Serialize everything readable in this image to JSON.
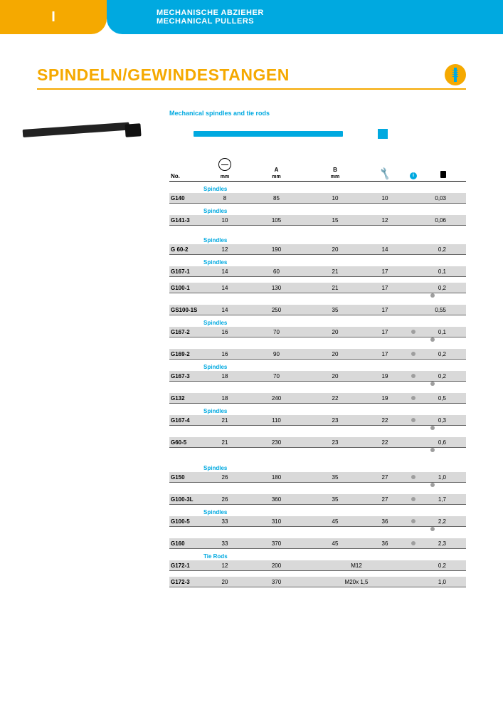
{
  "header": {
    "section_letter": "I",
    "line1": "MECHANISCHE ABZIEHER",
    "line2": "MECHANICAL PULLERS"
  },
  "title": "SPINDELN/GEWINDESTANGEN",
  "subtitle": "Mechanical spindles and tie rods",
  "columns": {
    "no": "No.",
    "dia_unit": "mm",
    "a_label": "A",
    "a_unit": "mm",
    "b_label": "B",
    "b_unit": "mm"
  },
  "groups": [
    {
      "label": "Spindles",
      "rows": [
        {
          "no": "G140",
          "dia": "8",
          "a": "85",
          "b": "10",
          "key": "10",
          "info": false,
          "wt": "0,03",
          "alt": true
        }
      ]
    },
    {
      "label": "Spindles",
      "rows": [
        {
          "no": "G141-3",
          "dia": "10",
          "a": "105",
          "b": "15",
          "key": "12",
          "info": false,
          "wt": "0,06",
          "alt": true
        }
      ]
    },
    {
      "label": "Spindles",
      "spacer_before": true,
      "rows": [
        {
          "no": "G 60-2",
          "dia": "12",
          "a": "190",
          "b": "20",
          "key": "14",
          "info": false,
          "wt": "0,2",
          "alt": true
        }
      ]
    },
    {
      "label": "Spindles",
      "rows": [
        {
          "no": "G167-1",
          "dia": "14",
          "a": "60",
          "b": "21",
          "key": "17",
          "info": false,
          "wt": "0,1",
          "alt": true
        },
        {
          "spacer": true
        },
        {
          "no": "G100-1",
          "dia": "14",
          "a": "130",
          "b": "21",
          "key": "17",
          "info": false,
          "wt": "0,2",
          "alt": true,
          "info_below": true
        },
        {
          "spacer": true
        },
        {
          "no": "GS100-1S",
          "dia": "14",
          "a": "250",
          "b": "35",
          "key": "17",
          "info": false,
          "wt": "0,55",
          "alt": true
        }
      ]
    },
    {
      "label": "Spindles",
      "rows": [
        {
          "no": "G167-2",
          "dia": "16",
          "a": "70",
          "b": "20",
          "key": "17",
          "info": true,
          "wt": "0,1",
          "alt": true,
          "info_below": true
        },
        {
          "spacer": true
        },
        {
          "no": "G169-2",
          "dia": "16",
          "a": "90",
          "b": "20",
          "key": "17",
          "info": true,
          "wt": "0,2",
          "alt": true
        }
      ]
    },
    {
      "label": "Spindles",
      "rows": [
        {
          "no": "G167-3",
          "dia": "18",
          "a": "70",
          "b": "20",
          "key": "19",
          "info": true,
          "wt": "0,2",
          "alt": true,
          "info_below": true
        },
        {
          "spacer": true
        },
        {
          "no": "G132",
          "dia": "18",
          "a": "240",
          "b": "22",
          "key": "19",
          "info": true,
          "wt": "0,5",
          "alt": true
        }
      ]
    },
    {
      "label": "Spindles",
      "rows": [
        {
          "no": "G167-4",
          "dia": "21",
          "a": "110",
          "b": "23",
          "key": "22",
          "info": true,
          "wt": "0,3",
          "alt": true,
          "info_below": true
        },
        {
          "spacer": true
        },
        {
          "no": "G60-5",
          "dia": "21",
          "a": "230",
          "b": "23",
          "key": "22",
          "info": false,
          "wt": "0,6",
          "alt": true,
          "info_below": true
        }
      ]
    },
    {
      "label": "Spindles",
      "spacer_before": true,
      "rows": [
        {
          "no": "G150",
          "dia": "26",
          "a": "180",
          "b": "35",
          "key": "27",
          "info": true,
          "wt": "1,0",
          "alt": true,
          "info_below": true
        },
        {
          "spacer": true
        },
        {
          "no": "G100-3L",
          "dia": "26",
          "a": "360",
          "b": "35",
          "key": "27",
          "info": true,
          "wt": "1,7",
          "alt": true
        }
      ]
    },
    {
      "label": "Spindles",
      "rows": [
        {
          "no": "G100-5",
          "dia": "33",
          "a": "310",
          "b": "45",
          "key": "36",
          "info": true,
          "wt": "2,2",
          "alt": true,
          "info_below": true
        },
        {
          "spacer": true
        },
        {
          "no": "G160",
          "dia": "33",
          "a": "370",
          "b": "45",
          "key": "36",
          "info": true,
          "wt": "2,3",
          "alt": true
        }
      ]
    },
    {
      "label": "Tie Rods",
      "rows": [
        {
          "no": "G172-1",
          "dia": "12",
          "a": "200",
          "merge_b": "M12",
          "info": false,
          "wt": "0,2",
          "alt": true
        },
        {
          "spacer": true
        },
        {
          "no": "G172-3",
          "dia": "20",
          "a": "370",
          "merge_b": "M20x 1,5",
          "info": false,
          "wt": "1,0",
          "alt": true
        }
      ]
    }
  ],
  "colors": {
    "orange": "#f5a900",
    "cyan": "#00a9e0",
    "row_alt": "#d9d9d9",
    "dot": "#9e9e9e"
  }
}
